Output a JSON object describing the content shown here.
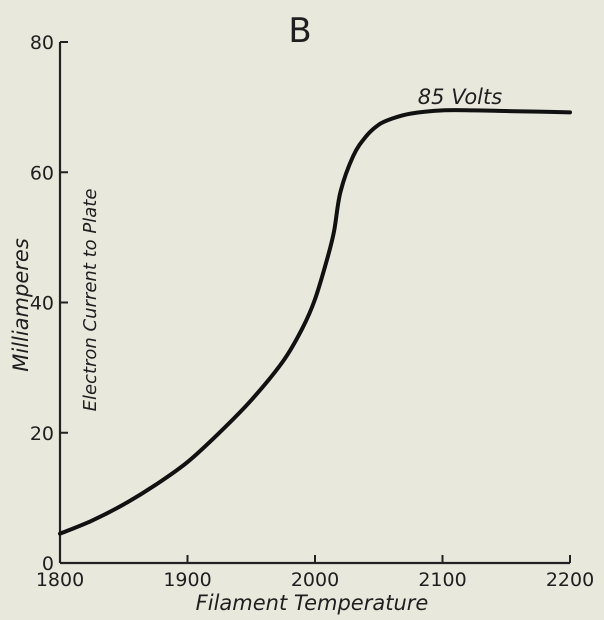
{
  "chart_data": {
    "type": "line",
    "title": "B",
    "xlabel": "Filament Temperature",
    "ylabel": "Milliamperes",
    "ylabel_secondary": "Electron Current to Plate",
    "annotation": "85 Volts",
    "xlim": [
      1800,
      2200
    ],
    "ylim": [
      0,
      80
    ],
    "x_ticks": [
      1800,
      1900,
      2000,
      2100,
      2200
    ],
    "y_ticks": [
      0,
      20,
      40,
      60,
      80
    ],
    "x_tick_labels": [
      "1800",
      "1900",
      "2000",
      "2100",
      "2200"
    ],
    "y_tick_labels": [
      "0",
      "20",
      "40",
      "60",
      "80"
    ],
    "grid": false,
    "series": [
      {
        "x": [
          1800,
          1825,
          1850,
          1875,
          1900,
          1925,
          1950,
          1975,
          1990,
          2000,
          2010,
          2015,
          2020,
          2030,
          2040,
          2050,
          2060,
          2075,
          2100,
          2125,
          2150,
          2175,
          2200
        ],
        "values": [
          4.5,
          6.5,
          9,
          12,
          15.5,
          20,
          25,
          31,
          36,
          40.5,
          47,
          51,
          57,
          62.5,
          65.5,
          67.3,
          68.2,
          69,
          69.5,
          69.5,
          69.4,
          69.3,
          69.2
        ]
      }
    ]
  }
}
